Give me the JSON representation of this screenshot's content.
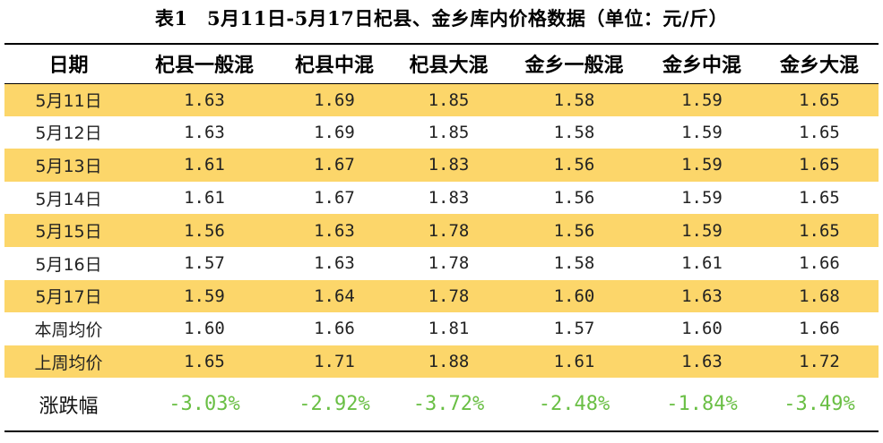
{
  "title": "表1　5月11日-5月17日杞县、金乡库内价格数据（单位：元/斤）",
  "colors": {
    "stripe": "#fcd66a",
    "change_text": "#6abf45"
  },
  "table": {
    "headers": [
      "日期",
      "杞县一般混",
      "杞县中混",
      "杞县大混",
      "金乡一般混",
      "金乡中混",
      "金乡大混"
    ],
    "rows": [
      {
        "date": "5月11日",
        "values": [
          "1.63",
          "1.69",
          "1.85",
          "1.58",
          "1.59",
          "1.65"
        ]
      },
      {
        "date": "5月12日",
        "values": [
          "1.63",
          "1.69",
          "1.85",
          "1.58",
          "1.59",
          "1.65"
        ]
      },
      {
        "date": "5月13日",
        "values": [
          "1.61",
          "1.67",
          "1.83",
          "1.56",
          "1.59",
          "1.65"
        ]
      },
      {
        "date": "5月14日",
        "values": [
          "1.61",
          "1.67",
          "1.83",
          "1.56",
          "1.59",
          "1.65"
        ]
      },
      {
        "date": "5月15日",
        "values": [
          "1.56",
          "1.63",
          "1.78",
          "1.56",
          "1.59",
          "1.65"
        ]
      },
      {
        "date": "5月16日",
        "values": [
          "1.57",
          "1.63",
          "1.78",
          "1.58",
          "1.61",
          "1.66"
        ]
      },
      {
        "date": "5月17日",
        "values": [
          "1.59",
          "1.64",
          "1.78",
          "1.60",
          "1.63",
          "1.68"
        ]
      },
      {
        "date": "本周均价",
        "values": [
          "1.60",
          "1.66",
          "1.81",
          "1.57",
          "1.60",
          "1.66"
        ]
      },
      {
        "date": "上周均价",
        "values": [
          "1.65",
          "1.71",
          "1.88",
          "1.61",
          "1.63",
          "1.72"
        ]
      }
    ],
    "change_row": {
      "label": "涨跌幅",
      "values": [
        "-3.03%",
        "-2.92%",
        "-3.72%",
        "-2.48%",
        "-1.84%",
        "-3.49%"
      ]
    }
  }
}
